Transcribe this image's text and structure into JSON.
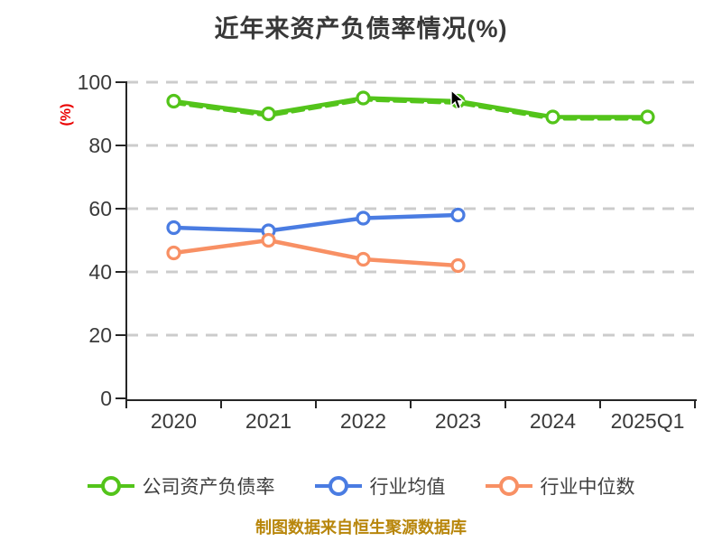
{
  "chart_data": {
    "type": "line",
    "title": "近年来资产负债率情况(%)",
    "ylabel": "(%)",
    "xlabel": "",
    "categories": [
      "2020",
      "2021",
      "2022",
      "2023",
      "2024",
      "2025Q1"
    ],
    "series": [
      {
        "key": "company-debt-ratio",
        "name": "公司资产负债率",
        "color": "#53c41a",
        "values": [
          94,
          90,
          95,
          94,
          89,
          89
        ]
      },
      {
        "key": "industry-average",
        "name": "行业均值",
        "color": "#4a7ce2",
        "values": [
          54,
          53,
          57,
          58,
          null,
          null
        ]
      },
      {
        "key": "industry-median",
        "name": "行业中位数",
        "color": "#f89064",
        "values": [
          46,
          50,
          44,
          42,
          null,
          null
        ]
      }
    ],
    "ylim": [
      0,
      100
    ],
    "yticks": [
      0,
      20,
      40,
      60,
      80,
      100
    ],
    "grid": "horizontal-dashed",
    "legend_position": "bottom"
  },
  "footer": {
    "note": "制图数据来自恒生聚源数据库"
  },
  "colors": {
    "background": "#ffffff",
    "title_text": "#383838",
    "axis": "#262626",
    "tick_label": "#3a3a3a",
    "gridline": "#cccccc",
    "ylabel_red": "#ea0000",
    "legend_text": "#3f3f3f",
    "footer_gold": "#b8860b",
    "series_green": "#53c41a",
    "series_blue": "#4a7ce2",
    "series_orange": "#f89064"
  }
}
